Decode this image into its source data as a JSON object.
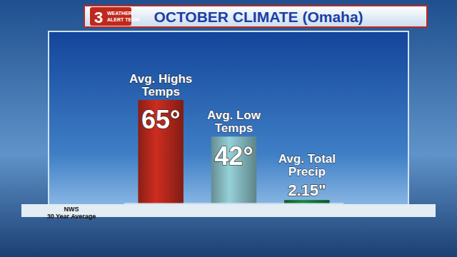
{
  "chart_data": {
    "type": "bar",
    "title": "OCTOBER CLIMATE (Omaha)",
    "categories": [
      "Avg. Highs Temps",
      "Avg. Low Temps",
      "Avg. Total Precip"
    ],
    "values": [
      65,
      42,
      2.15
    ],
    "value_labels": [
      "65°",
      "42°",
      "2.15\""
    ],
    "colors": [
      "#b8281c",
      "#86bcc2",
      "#137a33"
    ],
    "data_labels": true,
    "tick_labels": false,
    "grid": false,
    "source": [
      "NWS",
      "30 Year Average"
    ],
    "logo_text": [
      "3",
      "WEATHER",
      "ALERT TEAM"
    ]
  }
}
